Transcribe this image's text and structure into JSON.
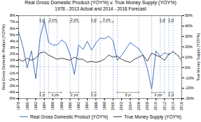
{
  "chart_data": {
    "type": "line",
    "title": "Real Gross Domestic Product (YOY%) v. True Money Supply (YOY%)",
    "subtitle": "1978 - 2013 Actual and 2014 - 2016 Forecast",
    "ylabel": "Real Gross Domestic Product (YOY%)",
    "y2label": "True Money Supply (YOY%)",
    "x": [
      1978,
      1979,
      1980,
      1981,
      1982,
      1983,
      1984,
      1985,
      1986,
      1987,
      1988,
      1989,
      1990,
      1991,
      1992,
      1993,
      1994,
      1995,
      1996,
      1997,
      1998,
      1999,
      2000,
      2001,
      2002,
      2003,
      2004,
      2005,
      2006,
      2007,
      2008,
      2009,
      2010,
      2011,
      2012,
      2013,
      2014,
      2015,
      2016
    ],
    "xlim": [
      1978,
      2016
    ],
    "xticks": [
      1978,
      1980,
      1982,
      1984,
      1986,
      1988,
      1990,
      1992,
      1994,
      1996,
      1998,
      2000,
      2002,
      2004,
      2006,
      2008,
      2010,
      2012,
      2014,
      2016
    ],
    "ylim": [
      -0.05,
      0.08
    ],
    "yticks": [
      {
        "value": -0.05,
        "label": "-5%"
      },
      {
        "value": -0.04,
        "label": "-4%"
      },
      {
        "value": -0.03,
        "label": "-3%"
      },
      {
        "value": -0.02,
        "label": "-2%"
      },
      {
        "value": -0.01,
        "label": "-1%"
      },
      {
        "value": 0.0,
        "label": "0%"
      },
      {
        "value": 0.01,
        "label": "1%"
      },
      {
        "value": 0.02,
        "label": "2%"
      },
      {
        "value": 0.03,
        "label": "3%"
      },
      {
        "value": 0.04,
        "label": "4%"
      },
      {
        "value": 0.05,
        "label": "5%"
      },
      {
        "value": 0.06,
        "label": "6%"
      },
      {
        "value": 0.07,
        "label": "7%"
      },
      {
        "value": 0.08,
        "label": "8%"
      }
    ],
    "y2lim": [
      -0.3,
      0.5
    ],
    "y2ticks": [
      {
        "value": -0.3,
        "label": "-30%"
      },
      {
        "value": -0.2,
        "label": "-20%"
      },
      {
        "value": -0.1,
        "label": "-10%"
      },
      {
        "value": 0.0,
        "label": "0%"
      },
      {
        "value": 0.1,
        "label": "10%"
      },
      {
        "value": 0.2,
        "label": "20%"
      },
      {
        "value": 0.3,
        "label": "30%"
      },
      {
        "value": 0.4,
        "label": "40%"
      },
      {
        "value": 0.5,
        "label": "50%"
      }
    ],
    "series": [
      {
        "name": "Real Gross Domestic Product (YOY%)",
        "color": "#4472C4",
        "values": [
          0.055,
          0.032,
          -0.002,
          0.025,
          -0.019,
          0.045,
          0.072,
          0.038,
          0.034,
          0.034,
          0.042,
          0.037,
          0.019,
          -0.012,
          0.034,
          0.027,
          0.04,
          0.026,
          0.037,
          0.045,
          0.044,
          0.048,
          0.041,
          0.01,
          0.018,
          0.028,
          0.038,
          0.033,
          0.028,
          0.018,
          -0.003,
          -0.035,
          0.025,
          0.016,
          0.022,
          0.019,
          0.024,
          0.018,
          0.008
        ]
      },
      {
        "name": "True Money Supply (YOY%)",
        "color": "#404040",
        "axis": "y2",
        "values": [
          0.08,
          0.06,
          0.09,
          0.07,
          0.09,
          0.14,
          0.15,
          0.12,
          0.1,
          0.08,
          0.09,
          0.08,
          0.07,
          0.1,
          0.08,
          0.08,
          0.05,
          0.06,
          0.05,
          0.06,
          0.08,
          0.12,
          0.1,
          0.11,
          0.08,
          0.06,
          0.05,
          0.08,
          0.1,
          0.12,
          0.06,
          0.14,
          0.12,
          0.1,
          0.07,
          0.13,
          0.15,
          0.12,
          0.08
        ]
      }
    ],
    "forecast_from": 2014,
    "hlines": [
      0
    ],
    "vlines": [
      1983,
      1984,
      1985,
      1987,
      1990,
      1992,
      1995,
      1996,
      1997,
      2000,
      2001,
      2006,
      2009,
      2011,
      2012,
      2013,
      2014
    ],
    "annotations": [
      {
        "label": "1 yr",
        "x_start": 1983,
        "x_end": 1984,
        "side": "top"
      },
      {
        "label": "2 yrs",
        "x_start": 1985,
        "x_end": 1987,
        "side": "top"
      },
      {
        "label": "2 yrs",
        "x_start": 1990,
        "x_end": 1992,
        "side": "top"
      },
      {
        "label": "1 yr",
        "x_start": 1995,
        "x_end": 1996,
        "side": "top"
      },
      {
        "label": "3 yrs",
        "x_start": 1997,
        "x_end": 2000,
        "side": "top"
      },
      {
        "label": "1 yr",
        "x_start": 2011,
        "x_end": 2012,
        "side": "top"
      },
      {
        "label": "1 yr",
        "x_start": 2013,
        "x_end": 2014,
        "side": "top"
      },
      {
        "label": "1 yr",
        "x_start": 1983,
        "x_end": 1984,
        "side": "bottom"
      },
      {
        "label": "3 yrs",
        "x_start": 1985,
        "x_end": 1988,
        "side": "bottom"
      },
      {
        "label": "2 yrs",
        "x_start": 1990,
        "x_end": 1992,
        "side": "bottom"
      },
      {
        "label": "1 yr",
        "x_start": 1995,
        "x_end": 1996,
        "side": "bottom"
      },
      {
        "label": "5 yr",
        "x_start": 2001,
        "x_end": 2006,
        "side": "bottom"
      },
      {
        "label": "3 yrs",
        "x_start": 2009,
        "x_end": 2012,
        "side": "bottom"
      },
      {
        "label": "1 yr",
        "x_start": 2013,
        "x_end": 2014,
        "side": "bottom"
      }
    ],
    "legend": "bottom",
    "grid": false
  }
}
